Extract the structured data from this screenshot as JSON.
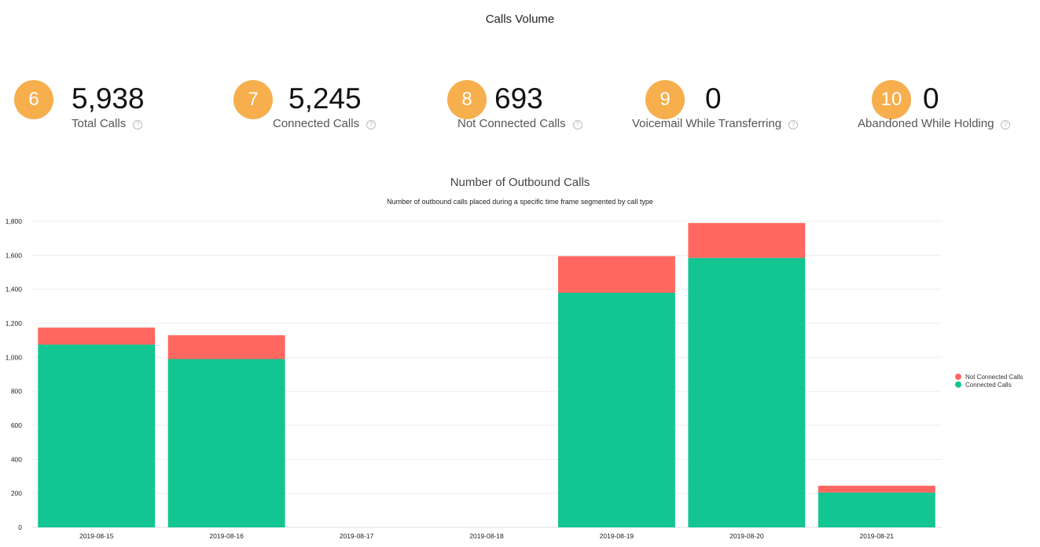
{
  "page_title": "Calls Volume",
  "accent_color": "#F7AE4C",
  "kpis": [
    {
      "badge": "6",
      "value": "5,938",
      "label": "Total Calls",
      "help_icon": "question-circle-icon"
    },
    {
      "badge": "7",
      "value": "5,245",
      "label": "Connected Calls",
      "help_icon": "question-circle-icon"
    },
    {
      "badge": "8",
      "value": "693",
      "label": "Not Connected Calls",
      "help_icon": "question-circle-icon"
    },
    {
      "badge": "9",
      "value": "0",
      "label": "Voicemail While Transferring",
      "help_icon": "question-circle-icon"
    },
    {
      "badge": "10",
      "value": "0",
      "label": "Abandoned While Holding",
      "help_icon": "question-circle-icon"
    }
  ],
  "chart_data": {
    "type": "bar",
    "stacked": true,
    "title": "Number of Outbound Calls",
    "subtitle": "Number of outbound calls placed during a specific time frame segmented by call type",
    "xlabel": "",
    "ylabel": "",
    "categories": [
      "2019-08-15",
      "2019-08-16",
      "2019-08-17",
      "2019-08-18",
      "2019-08-19",
      "2019-08-20",
      "2019-08-21"
    ],
    "series": [
      {
        "name": "Connected Calls",
        "color": "#13C592",
        "values": [
          1075,
          990,
          0,
          0,
          1380,
          1585,
          205
        ]
      },
      {
        "name": "Not Connected Calls",
        "color": "#FF6760",
        "values": [
          100,
          140,
          0,
          0,
          215,
          205,
          40
        ]
      }
    ],
    "ylim": [
      0,
      1800
    ],
    "yticks": [
      0,
      200,
      400,
      600,
      800,
      1000,
      1200,
      1400,
      1600,
      1800
    ],
    "ytick_labels": [
      "0",
      "200",
      "400",
      "600",
      "800",
      "1,000",
      "1,200",
      "1,400",
      "1,600",
      "1,800"
    ],
    "grid": true,
    "legend_position": "right",
    "legend": [
      "Not Connected Calls",
      "Connected Calls"
    ]
  }
}
